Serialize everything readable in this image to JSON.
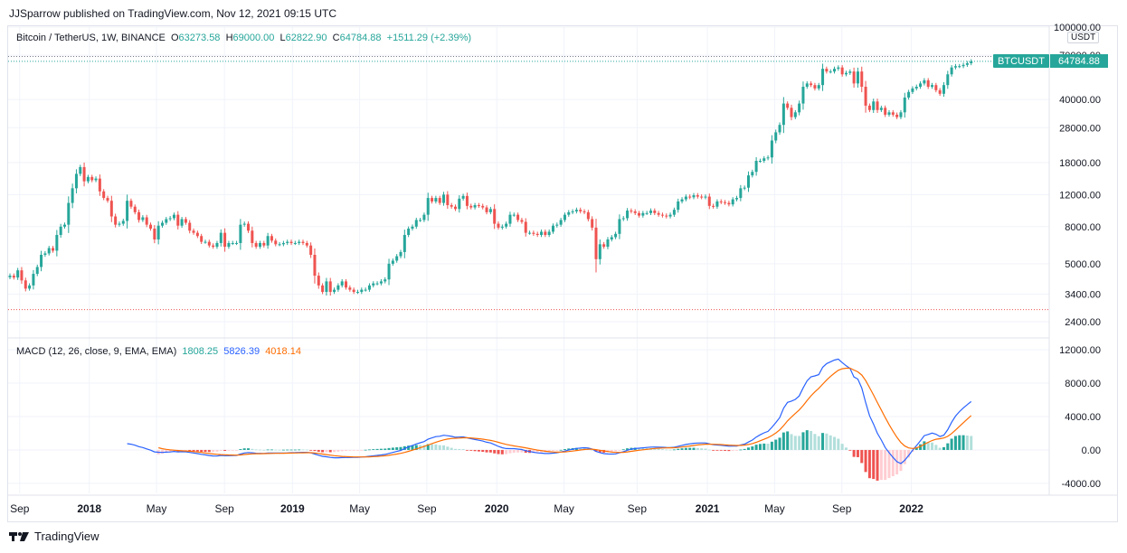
{
  "header": {
    "publisher_line": "JJSparrow published on TradingView.com, Nov 12, 2021 09:15 UTC"
  },
  "legend": {
    "symbol": "Bitcoin / TetherUS, 1W, BINANCE",
    "open_label": "O",
    "open": "63273.58",
    "high_label": "H",
    "high": "69000.00",
    "low_label": "L",
    "low": "62822.90",
    "close_label": "C",
    "close": "64784.88",
    "change": "+1511.29 (+2.39%)"
  },
  "price_axis": {
    "unit": "USDT",
    "ticker_label": "BTCUSDT",
    "last_price": "64784.88"
  },
  "macd_legend": {
    "name": "MACD (12, 26, close, 9, EMA, EMA)",
    "histogram": "1808.25",
    "macd": "5826.39",
    "signal": "4018.14"
  },
  "footer": {
    "brand": "TradingView"
  },
  "colors": {
    "up": "#26a69a",
    "down": "#ef5350",
    "macd_line": "#2962ff",
    "signal_line": "#ff6d00",
    "hist_up_light": "#b2dfdb",
    "hist_down_light": "#ffcdd2",
    "grid": "#f0f3fa"
  },
  "chart_data": [
    {
      "type": "candlestick",
      "title": "Bitcoin / TetherUS, 1W, BINANCE",
      "y_scale": "log",
      "ylim": [
        2000,
        100000
      ],
      "y_ticks": [
        100000,
        70000,
        40000,
        28000,
        18000,
        12000,
        8000,
        5000,
        3400,
        2400
      ],
      "y_tick_labels": [
        "100000.00",
        "70000.00",
        "40000.00",
        "28000.00",
        "18000.00",
        "12000.00",
        "8000.00",
        "5000.00",
        "3400.00",
        "2400.00"
      ],
      "x_tick_labels": [
        "Sep",
        "2018",
        "May",
        "Sep",
        "2019",
        "May",
        "Sep",
        "2020",
        "May",
        "Sep",
        "2021",
        "May",
        "Sep",
        "2022"
      ],
      "x_tick_bold": [
        false,
        true,
        false,
        false,
        true,
        false,
        false,
        true,
        false,
        false,
        true,
        false,
        false,
        true
      ],
      "x_start": "2017-08-14",
      "weekly_close": [
        4300,
        4200,
        4600,
        4050,
        3650,
        3800,
        4400,
        4800,
        5600,
        5700,
        6100,
        5900,
        7200,
        8000,
        8200,
        10800,
        13000,
        15600,
        17000,
        14200,
        15000,
        14400,
        14700,
        12500,
        11500,
        11100,
        9100,
        8200,
        8300,
        8600,
        11100,
        10300,
        9600,
        8700,
        9000,
        8200,
        7800,
        6800,
        8100,
        8400,
        8800,
        8900,
        9300,
        8100,
        8800,
        8400,
        7600,
        7400,
        7100,
        6600,
        6600,
        6300,
        6200,
        6500,
        7400,
        6200,
        6500,
        6500,
        6500,
        8200,
        8300,
        7600,
        6500,
        6200,
        6500,
        6300,
        7100,
        6700,
        6400,
        6400,
        6500,
        6600,
        6500,
        6500,
        6600,
        6500,
        6300,
        5600,
        4300,
        3800,
        3500,
        4000,
        3500,
        3600,
        3800,
        4000,
        3700,
        3600,
        3500,
        3500,
        3600,
        3600,
        3800,
        3900,
        3900,
        4000,
        4100,
        5000,
        5200,
        5500,
        5800,
        7200,
        7800,
        8000,
        8700,
        8700,
        9300,
        11500,
        11000,
        11500,
        10800,
        12000,
        10500,
        10300,
        10000,
        11400,
        11800,
        10400,
        10200,
        10500,
        10400,
        10200,
        9600,
        10000,
        8300,
        7900,
        8000,
        8300,
        9300,
        9300,
        8700,
        8500,
        7400,
        7400,
        7300,
        7200,
        7500,
        7200,
        7500,
        8100,
        8200,
        8700,
        9300,
        9600,
        9700,
        9900,
        9700,
        9600,
        8800,
        7900,
        5300,
        6400,
        6200,
        6800,
        7000,
        7300,
        8800,
        8900,
        9800,
        9700,
        9500,
        9200,
        9500,
        9500,
        9800,
        9500,
        9300,
        9200,
        9100,
        9300,
        9900,
        11000,
        11300,
        11700,
        11600,
        11900,
        11700,
        11600,
        11700,
        10400,
        10300,
        11000,
        10900,
        10800,
        10600,
        11300,
        11500,
        13000,
        13100,
        15300,
        16000,
        18400,
        18400,
        19000,
        19200,
        23800,
        26400,
        29000,
        38000,
        36000,
        32000,
        34000,
        38000,
        47000,
        49000,
        48000,
        46000,
        48000,
        59000,
        57000,
        57000,
        59000,
        60000,
        55000,
        56000,
        57000,
        49000,
        57000,
        47000,
        37000,
        35000,
        39000,
        35000,
        36000,
        33000,
        34000,
        33000,
        32000,
        34000,
        41000,
        44000,
        46000,
        47000,
        49000,
        51000,
        47000,
        48000,
        45000,
        43000,
        48000,
        55000,
        60000,
        61000,
        61000,
        62000,
        63300,
        64800
      ],
      "macd_ylim": [
        -5200,
        13200
      ],
      "macd_y_ticks": [
        12000,
        8000,
        4000,
        0,
        -4000
      ],
      "macd_y_tick_labels": [
        "12000.00",
        "8000.00",
        "4000.00",
        "0.00",
        "-4000.00"
      ],
      "macd_legend": {
        "histogram": 1808.25,
        "macd": 5826.39,
        "signal": 4018.14
      }
    }
  ]
}
